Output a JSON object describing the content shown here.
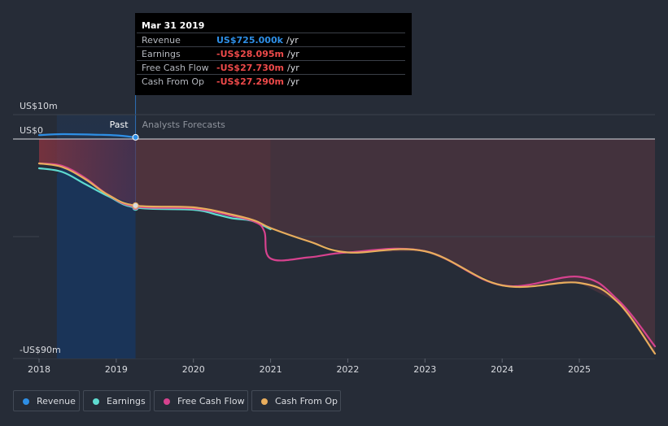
{
  "tooltip": {
    "date": "Mar 31 2019",
    "rows": [
      {
        "label": "Revenue",
        "value": "US$725.000k",
        "unit": "/yr",
        "color": "#2e8fe6"
      },
      {
        "label": "Earnings",
        "value": "-US$28.095m",
        "unit": "/yr",
        "color": "#ee4a4a"
      },
      {
        "label": "Free Cash Flow",
        "value": "-US$27.730m",
        "unit": "/yr",
        "color": "#ee4a4a"
      },
      {
        "label": "Cash From Op",
        "value": "-US$27.290m",
        "unit": "/yr",
        "color": "#ee4a4a"
      }
    ]
  },
  "legend": [
    {
      "label": "Revenue",
      "color": "#2e8fe6"
    },
    {
      "label": "Earnings",
      "color": "#5fdbd0"
    },
    {
      "label": "Free Cash Flow",
      "color": "#d6428e"
    },
    {
      "label": "Cash From Op",
      "color": "#e8ad5d"
    }
  ],
  "chart_data": {
    "type": "line",
    "y_unit": "US$ m",
    "ylim": [
      -90,
      10
    ],
    "y_tick_labels": [
      {
        "value": 10,
        "label": "US$10m"
      },
      {
        "value": 0,
        "label": "US$0"
      },
      {
        "value": -90,
        "label": "-US$90m"
      }
    ],
    "gridlines": [
      10,
      0,
      -40,
      -90
    ],
    "xlim": [
      2018.0,
      2025.98
    ],
    "x_ticks": [
      "2018",
      "2019",
      "2020",
      "2021",
      "2022",
      "2023",
      "2024",
      "2025"
    ],
    "past_label": "Past",
    "forecast_label": "Analysts Forecasts",
    "past_end": 2019.25,
    "highlight_start": 2018.23,
    "series": [
      {
        "name": "Revenue",
        "color": "#2e8fe6",
        "points": [
          [
            2018.0,
            1.6
          ],
          [
            2018.3,
            2.0
          ],
          [
            2018.7,
            1.8
          ],
          [
            2019.0,
            1.5
          ],
          [
            2019.25,
            0.7
          ]
        ]
      },
      {
        "name": "Earnings",
        "color": "#5fdbd0",
        "points": [
          [
            2018.0,
            -12.0
          ],
          [
            2018.3,
            -13.5
          ],
          [
            2018.6,
            -18.5
          ],
          [
            2018.9,
            -23.5
          ],
          [
            2019.25,
            -28.1
          ],
          [
            2020.0,
            -29.0
          ],
          [
            2020.3,
            -31.0
          ],
          [
            2020.5,
            -32.5
          ],
          [
            2020.75,
            -33.5
          ],
          [
            2021.0,
            -37.0
          ]
        ]
      },
      {
        "name": "Free Cash Flow",
        "color": "#d6428e",
        "points": [
          [
            2018.0,
            -10.0
          ],
          [
            2018.3,
            -11.0
          ],
          [
            2018.6,
            -16.0
          ],
          [
            2018.9,
            -23.0
          ],
          [
            2019.25,
            -27.7
          ],
          [
            2020.0,
            -28.5
          ],
          [
            2020.5,
            -31.5
          ],
          [
            2020.8,
            -34.0
          ],
          [
            2020.92,
            -38.0
          ],
          [
            2021.0,
            -49.0
          ],
          [
            2021.5,
            -48.5
          ],
          [
            2022.0,
            -46.5
          ],
          [
            2023.0,
            -46.0
          ],
          [
            2024.0,
            -60.0
          ],
          [
            2025.0,
            -56.5
          ],
          [
            2025.5,
            -66.0
          ],
          [
            2025.98,
            -85.0
          ]
        ]
      },
      {
        "name": "Cash From Op",
        "color": "#e8ad5d",
        "points": [
          [
            2018.0,
            -10.0
          ],
          [
            2018.3,
            -11.5
          ],
          [
            2018.6,
            -16.5
          ],
          [
            2018.9,
            -23.0
          ],
          [
            2019.25,
            -27.3
          ],
          [
            2020.0,
            -28.0
          ],
          [
            2020.5,
            -31.0
          ],
          [
            2020.8,
            -33.5
          ],
          [
            2021.0,
            -36.5
          ],
          [
            2021.5,
            -42.0
          ],
          [
            2022.0,
            -46.5
          ],
          [
            2023.0,
            -46.0
          ],
          [
            2024.0,
            -60.0
          ],
          [
            2025.0,
            -59.0
          ],
          [
            2025.5,
            -67.0
          ],
          [
            2025.98,
            -88.0
          ]
        ]
      }
    ]
  }
}
